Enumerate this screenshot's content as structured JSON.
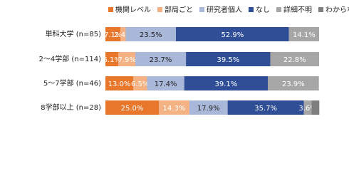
{
  "chart_data": {
    "type": "stacked-bar-horizontal",
    "categories": [
      "単科大学 (n=85)",
      "2〜4学部 (n=114)",
      "5〜7学部 (n=46)",
      "8学部以上 (n=28)"
    ],
    "xlim": [
      0,
      100
    ],
    "legend": "top",
    "series": [
      {
        "name": "機関レベル",
        "color": "#e8762b",
        "label_color": "#ffffff",
        "values": [
          7.1,
          6.1,
          13.0,
          25.0
        ],
        "value_labels": [
          "7.1%",
          "6.1%",
          "13.0%",
          "25.0%"
        ]
      },
      {
        "name": "部局ごと",
        "color": "#f4b183",
        "label_color": "#ffffff",
        "values": [
          2.4,
          7.9,
          6.5,
          14.3
        ],
        "value_labels": [
          "2.4%",
          "7.9%",
          "6.5%",
          "14.3%"
        ]
      },
      {
        "name": "研究者個人",
        "color": "#a9b8d8",
        "label_color": "#222222",
        "values": [
          23.5,
          23.7,
          17.4,
          17.9
        ],
        "value_labels": [
          "23.5%",
          "23.7%",
          "17.4%",
          "17.9%"
        ]
      },
      {
        "name": "なし",
        "color": "#2f4e96",
        "label_color": "#ffffff",
        "values": [
          52.9,
          39.5,
          39.1,
          35.7
        ],
        "value_labels": [
          "52.9%",
          "39.5%",
          "39.1%",
          "35.7%"
        ]
      },
      {
        "name": "詳細不明",
        "color": "#a6a6a6",
        "label_color": "#ffffff",
        "values": [
          14.1,
          22.8,
          23.9,
          3.6
        ],
        "value_labels": [
          "14.1%",
          "22.8%",
          "23.9%",
          "3.6%"
        ]
      },
      {
        "name": "わからない",
        "color": "#7f7f7f",
        "label_color": "#ffffff",
        "values": [
          null,
          null,
          null,
          3.6
        ],
        "value_labels": [
          null,
          null,
          null,
          null
        ]
      }
    ]
  }
}
